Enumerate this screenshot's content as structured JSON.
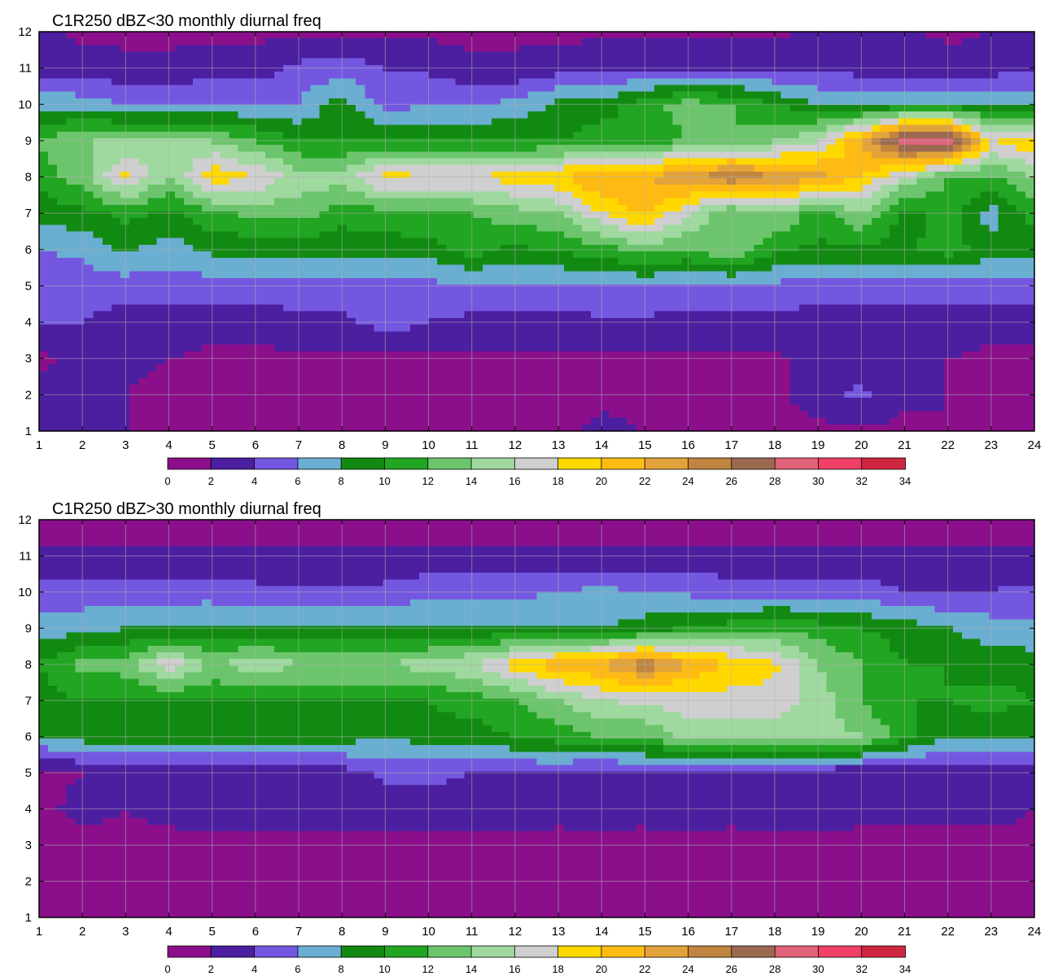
{
  "colors": {
    "palette": [
      "#8b0f8b",
      "#4b1fa0",
      "#7457e0",
      "#6aaed1",
      "#128a12",
      "#22a522",
      "#6cc56c",
      "#9fd99f",
      "#cfcfcf",
      "#ffd800",
      "#ffbb14",
      "#e2a33a",
      "#c28540",
      "#9c6a50",
      "#e0637a",
      "#f04068",
      "#d02540"
    ],
    "contour_line": "#f0b020",
    "grid": "#b0b0b0",
    "frame": "#000000"
  },
  "chart_data": [
    {
      "type": "heatmap",
      "title": "C1R250 dBZ<30 monthly diurnal freq",
      "xlabel": "",
      "ylabel": "",
      "xlim": [
        1,
        24
      ],
      "ylim": [
        1,
        12
      ],
      "x_ticks": [
        "1",
        "2",
        "3",
        "4",
        "5",
        "6",
        "7",
        "8",
        "9",
        "10",
        "11",
        "12",
        "13",
        "14",
        "15",
        "16",
        "17",
        "18",
        "19",
        "20",
        "21",
        "22",
        "23",
        "24"
      ],
      "y_ticks": [
        "1",
        "2",
        "3",
        "4",
        "5",
        "6",
        "7",
        "8",
        "9",
        "10",
        "11",
        "12"
      ],
      "colorbar_levels": [
        "0",
        "2",
        "4",
        "6",
        "8",
        "10",
        "12",
        "14",
        "16",
        "18",
        "20",
        "22",
        "24",
        "26",
        "28",
        "30",
        "32",
        "34"
      ],
      "peak_level_approx": 32,
      "data_note": "Approximate frequency field z[month][hour] (rows y=1..12, columns x=1..24) reconstructed from the contour bands",
      "z": [
        [
          3.0,
          2.5,
          2.0,
          1.5,
          1.5,
          1.5,
          1.5,
          1.5,
          1.5,
          1.5,
          1.5,
          1.5,
          1.5,
          2.5,
          2.0,
          1.5,
          1.5,
          1.5,
          1.5,
          1.5,
          1.5,
          2.0,
          2.0,
          1.5
        ],
        [
          3.0,
          3.0,
          2.0,
          1.5,
          1.5,
          1.5,
          1.5,
          1.5,
          1.5,
          1.5,
          1.5,
          1.5,
          1.5,
          1.5,
          1.5,
          1.5,
          1.5,
          1.5,
          3.0,
          4.5,
          2.5,
          2.0,
          1.5,
          1.5
        ],
        [
          1.5,
          2.5,
          2.5,
          2.0,
          1.5,
          1.5,
          1.5,
          1.5,
          1.5,
          1.5,
          1.5,
          1.5,
          1.5,
          1.5,
          1.5,
          1.5,
          1.5,
          1.5,
          3.0,
          3.0,
          2.5,
          2.0,
          1.5,
          1.5
        ],
        [
          4.0,
          4.0,
          3.0,
          3.0,
          3.0,
          3.0,
          3.5,
          3.5,
          5.0,
          4.0,
          3.5,
          3.5,
          3.5,
          3.5,
          3.5,
          3.5,
          3.5,
          3.5,
          3.0,
          3.0,
          3.0,
          3.0,
          3.0,
          3.0
        ],
        [
          5.0,
          5.0,
          5.0,
          5.0,
          5.0,
          5.0,
          5.0,
          5.0,
          5.0,
          5.5,
          5.5,
          5.5,
          5.5,
          6.0,
          6.0,
          5.5,
          5.5,
          5.5,
          5.0,
          5.0,
          5.0,
          5.0,
          5.0,
          5.0
        ],
        [
          6.0,
          6.5,
          8.5,
          7.0,
          8.5,
          8.5,
          8.5,
          8.5,
          9.0,
          9.0,
          11.0,
          9.5,
          10.5,
          11.0,
          13.0,
          12.0,
          14.0,
          10.5,
          9.5,
          9.5,
          9.5,
          11.0,
          9.0,
          8.5
        ],
        [
          8.5,
          9.5,
          10.5,
          9.5,
          11.5,
          12.5,
          13.0,
          11.0,
          11.0,
          12.0,
          12.0,
          13.0,
          14.0,
          18.0,
          20.5,
          16.0,
          12.0,
          14.0,
          11.0,
          14.0,
          9.0,
          11.0,
          7.0,
          11.0
        ],
        [
          11.0,
          13.0,
          18.5,
          14.0,
          19.5,
          18.0,
          15.0,
          15.0,
          19.0,
          18.0,
          18.0,
          19.0,
          20.0,
          22.5,
          22.0,
          24.0,
          26.0,
          24.0,
          23.0,
          20.0,
          16.0,
          12.0,
          12.0,
          14.0
        ],
        [
          12.0,
          14.0,
          14.0,
          14.0,
          14.0,
          12.0,
          10.0,
          10.0,
          10.0,
          10.0,
          10.0,
          10.0,
          10.0,
          11.0,
          11.0,
          12.0,
          12.0,
          14.0,
          16.0,
          22.0,
          30.0,
          30.0,
          18.0,
          20.0
        ],
        [
          7.5,
          7.0,
          6.0,
          6.0,
          6.0,
          6.0,
          6.0,
          9.0,
          5.0,
          6.0,
          6.0,
          6.5,
          8.5,
          9.0,
          11.0,
          13.0,
          12.0,
          10.0,
          8.0,
          8.0,
          8.0,
          8.0,
          8.0,
          8.0
        ],
        [
          3.0,
          3.0,
          2.5,
          2.5,
          3.0,
          3.0,
          4.5,
          5.0,
          4.0,
          3.5,
          2.5,
          2.5,
          3.0,
          3.5,
          3.5,
          3.5,
          3.5,
          3.5,
          3.5,
          3.0,
          2.5,
          3.0,
          3.0,
          3.5
        ],
        [
          2.5,
          1.5,
          1.5,
          1.5,
          1.5,
          1.5,
          1.5,
          1.5,
          1.5,
          1.5,
          1.5,
          1.5,
          1.5,
          1.5,
          1.5,
          1.5,
          1.5,
          1.5,
          2.5,
          2.5,
          2.5,
          1.5,
          2.0,
          2.5
        ]
      ]
    },
    {
      "type": "heatmap",
      "title": "C1R250 dBZ>30 monthly diurnal freq",
      "xlabel": "",
      "ylabel": "",
      "xlim": [
        1,
        24
      ],
      "ylim": [
        1,
        12
      ],
      "x_ticks": [
        "1",
        "2",
        "3",
        "4",
        "5",
        "6",
        "7",
        "8",
        "9",
        "10",
        "11",
        "12",
        "13",
        "14",
        "15",
        "16",
        "17",
        "18",
        "19",
        "20",
        "21",
        "22",
        "23",
        "24"
      ],
      "y_ticks": [
        "1",
        "2",
        "3",
        "4",
        "5",
        "6",
        "7",
        "8",
        "9",
        "10",
        "11",
        "12"
      ],
      "colorbar_levels": [
        "0",
        "2",
        "4",
        "6",
        "8",
        "10",
        "12",
        "14",
        "16",
        "18",
        "20",
        "22",
        "24",
        "26",
        "28",
        "30",
        "32",
        "34"
      ],
      "peak_level_approx": 27,
      "data_note": "Approximate frequency field z[month][hour] (rows y=1..12, columns x=1..24) reconstructed from the contour bands",
      "z": [
        [
          1.0,
          1.0,
          1.0,
          1.0,
          1.0,
          1.0,
          1.0,
          1.0,
          1.0,
          1.0,
          1.0,
          1.0,
          1.0,
          1.0,
          1.0,
          1.0,
          1.0,
          1.0,
          1.0,
          1.0,
          1.0,
          1.0,
          1.0,
          1.0
        ],
        [
          1.0,
          1.0,
          1.0,
          1.0,
          1.0,
          1.0,
          1.0,
          1.0,
          1.0,
          1.0,
          1.0,
          1.0,
          1.0,
          1.0,
          1.0,
          1.0,
          1.0,
          1.0,
          1.0,
          1.0,
          1.0,
          1.0,
          1.0,
          1.0
        ],
        [
          1.5,
          1.5,
          1.5,
          1.5,
          1.5,
          1.5,
          1.5,
          1.5,
          1.5,
          1.5,
          1.5,
          1.5,
          1.5,
          1.5,
          1.5,
          1.5,
          1.5,
          1.5,
          1.5,
          1.5,
          1.5,
          1.5,
          1.5,
          1.5
        ],
        [
          1.5,
          2.5,
          2.0,
          2.5,
          3.0,
          3.0,
          3.0,
          3.0,
          3.0,
          3.0,
          3.0,
          3.0,
          2.5,
          3.0,
          2.5,
          3.0,
          2.5,
          3.0,
          3.0,
          2.5,
          2.5,
          2.5,
          2.5,
          2.0
        ],
        [
          1.5,
          2.0,
          2.5,
          2.5,
          2.5,
          2.0,
          2.5,
          3.0,
          4.5,
          4.5,
          4.0,
          4.0,
          4.0,
          3.0,
          4.0,
          3.0,
          2.5,
          2.5,
          2.5,
          2.5,
          2.5,
          3.0,
          3.0,
          2.5
        ],
        [
          8.0,
          9.0,
          9.0,
          9.0,
          9.0,
          9.0,
          9.0,
          9.0,
          8.0,
          9.0,
          9.0,
          10.0,
          11.0,
          12.0,
          12.0,
          15.0,
          15.0,
          15.0,
          15.0,
          14.0,
          11.0,
          8.0,
          8.0,
          8.0
        ],
        [
          9.0,
          10.0,
          10.0,
          10.0,
          10.0,
          10.0,
          10.0,
          10.0,
          10.0,
          10.0,
          11.0,
          12.0,
          14.0,
          16.0,
          16.5,
          17.0,
          17.0,
          17.0,
          15.0,
          12.0,
          10.0,
          10.0,
          11.0,
          10.0
        ],
        [
          10.0,
          12.5,
          13.0,
          17.5,
          13.5,
          15.5,
          14.0,
          14.0,
          14.0,
          15.0,
          16.0,
          19.0,
          21.5,
          22.0,
          25.5,
          22.0,
          20.0,
          18.5,
          14.0,
          12.0,
          10.0,
          10.0,
          9.0,
          9.0
        ],
        [
          7.0,
          7.0,
          8.0,
          8.0,
          8.5,
          8.0,
          8.0,
          8.0,
          8.0,
          8.0,
          8.0,
          8.0,
          8.0,
          8.0,
          9.0,
          10.0,
          11.0,
          11.5,
          11.0,
          10.0,
          9.0,
          8.0,
          7.0,
          6.5
        ],
        [
          5.0,
          5.0,
          5.0,
          5.0,
          5.0,
          4.5,
          4.5,
          4.5,
          4.5,
          5.5,
          5.5,
          5.5,
          6.0,
          6.5,
          6.0,
          5.5,
          5.0,
          5.0,
          5.0,
          5.0,
          4.0,
          4.0,
          4.0,
          4.5
        ],
        [
          2.5,
          2.5,
          2.5,
          2.5,
          2.5,
          2.5,
          2.5,
          2.5,
          2.5,
          2.5,
          2.5,
          2.5,
          2.5,
          2.5,
          2.5,
          2.5,
          2.5,
          2.5,
          2.5,
          2.5,
          2.5,
          2.5,
          2.5,
          2.5
        ],
        [
          1.0,
          1.0,
          1.0,
          1.0,
          1.0,
          1.0,
          1.0,
          1.0,
          1.0,
          1.0,
          1.0,
          1.0,
          1.0,
          1.0,
          1.0,
          1.0,
          1.0,
          1.0,
          1.0,
          1.0,
          1.0,
          1.0,
          1.0,
          1.0
        ]
      ]
    }
  ]
}
